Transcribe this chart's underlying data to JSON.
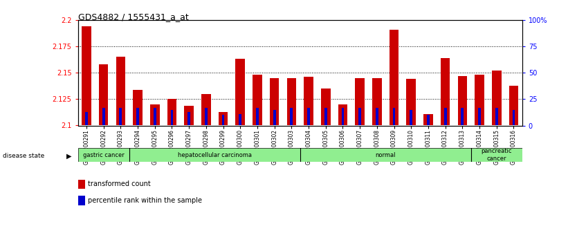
{
  "title": "GDS4882 / 1555431_a_at",
  "samples": [
    "GSM1200291",
    "GSM1200292",
    "GSM1200293",
    "GSM1200294",
    "GSM1200295",
    "GSM1200296",
    "GSM1200297",
    "GSM1200298",
    "GSM1200299",
    "GSM1200300",
    "GSM1200301",
    "GSM1200302",
    "GSM1200303",
    "GSM1200304",
    "GSM1200305",
    "GSM1200306",
    "GSM1200307",
    "GSM1200308",
    "GSM1200309",
    "GSM1200310",
    "GSM1200311",
    "GSM1200312",
    "GSM1200313",
    "GSM1200314",
    "GSM1200315",
    "GSM1200316"
  ],
  "transformed_count": [
    2.194,
    2.158,
    2.165,
    2.134,
    2.12,
    2.125,
    2.119,
    2.13,
    2.113,
    2.163,
    2.148,
    2.145,
    2.145,
    2.146,
    2.135,
    2.12,
    2.145,
    2.145,
    2.191,
    2.144,
    2.111,
    2.164,
    2.147,
    2.148,
    2.152,
    2.138
  ],
  "percentile_rank": [
    13,
    17,
    17,
    17,
    17,
    15,
    13,
    17,
    10,
    11,
    17,
    15,
    17,
    17,
    17,
    17,
    17,
    17,
    17,
    15,
    10,
    17,
    17,
    17,
    17,
    15
  ],
  "group_ranges": [
    [
      0,
      2
    ],
    [
      3,
      12
    ],
    [
      13,
      22
    ],
    [
      23,
      25
    ]
  ],
  "group_labels": [
    "gastric cancer",
    "hepatocellular carcinoma",
    "normal",
    "pancreatic\ncancer"
  ],
  "group_color": "#90EE90",
  "group_boundaries": [
    3,
    13,
    23
  ],
  "ylim_left": [
    2.1,
    2.2
  ],
  "ylim_right": [
    0,
    100
  ],
  "yticks_left": [
    2.1,
    2.125,
    2.15,
    2.175,
    2.2
  ],
  "ytick_labels_left": [
    "2.1",
    "2.125",
    "2.15",
    "2.175",
    "2.2"
  ],
  "yticks_right": [
    0,
    25,
    50,
    75,
    100
  ],
  "ytick_labels_right": [
    "0",
    "25",
    "50",
    "75",
    "100%"
  ],
  "bar_color": "#CC0000",
  "percentile_color": "#0000CC",
  "bg_color": "#ffffff",
  "bar_width": 0.55,
  "base_value": 2.1,
  "grid_lines": [
    2.125,
    2.15,
    2.175
  ]
}
